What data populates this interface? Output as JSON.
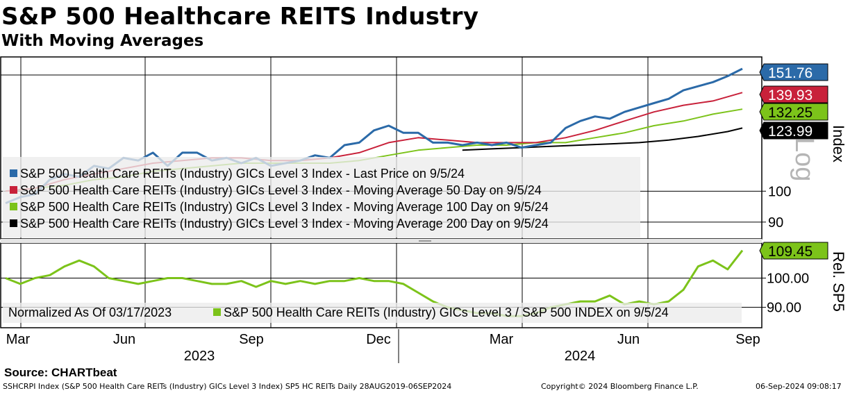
{
  "header": {
    "title": "S&P 500 Healthcare REITS Industry",
    "subtitle": "With Moving Averages"
  },
  "source": "Source: CHARTbeat",
  "footer": {
    "left": "SSHCRPI Index (S&P 500 Health Care REITs (Industry) GICs Level 3 Index) SP5 HC REITs  Daily 28AUG2019-06SEP2024",
    "center": "Copyright© 2024 Bloomberg Finance L.P.",
    "right": "06-Sep-2024 09:08:17"
  },
  "colors": {
    "last_price": "#2b6aa8",
    "ma50": "#c8213a",
    "ma100": "#7cc31a",
    "ma200": "#000000",
    "rel": "#7cc31a"
  },
  "chart_data": [
    {
      "type": "line",
      "panel": "upper",
      "axis_label": "Index",
      "scale": "log",
      "watermark": "Log",
      "x_tick_labels": [
        "Mar",
        "Jun",
        "Sep",
        "Dec",
        "Mar",
        "Jun",
        "Sep"
      ],
      "year_labels": [
        "2023",
        "2024"
      ],
      "y_ticks": [
        90,
        100
      ],
      "ylim": [
        85,
        158
      ],
      "series": [
        {
          "name": "S&P 500 Health Care REITs (Industry) GICs Level 3 Index - Last Price on 9/5/24",
          "key": "last_price",
          "last_value": "151.76",
          "x": [
            0,
            2,
            4,
            6,
            8,
            10,
            12,
            14,
            16,
            18,
            20,
            22,
            24,
            26,
            28,
            30,
            32,
            34,
            36,
            38,
            40,
            42,
            44,
            46,
            48,
            50,
            52,
            54,
            56,
            58,
            60,
            62,
            64,
            66,
            68,
            70,
            72,
            74,
            76,
            78,
            80,
            82,
            84,
            86,
            88,
            90,
            92,
            94,
            96,
            98,
            100
          ],
          "values": [
            96,
            98,
            99,
            104,
            106,
            105,
            109,
            108,
            112,
            111,
            114,
            109,
            114,
            114,
            111,
            112,
            110,
            112,
            109,
            110,
            111,
            113,
            112,
            117,
            118,
            123,
            125,
            122,
            122,
            118,
            118,
            117,
            118,
            117,
            118,
            116,
            117,
            118,
            124,
            127,
            129,
            128,
            131,
            133,
            135,
            137,
            141,
            143,
            145,
            148,
            151.76
          ]
        },
        {
          "name": "S&P 500 Health Care REITs (Industry) GICs Level 3 Index - Moving Average 50 Day on 9/5/24",
          "key": "ma50",
          "last_value": "139.93",
          "x": [
            0,
            4,
            8,
            12,
            16,
            20,
            24,
            28,
            32,
            36,
            40,
            44,
            48,
            52,
            56,
            60,
            64,
            68,
            72,
            76,
            80,
            84,
            88,
            92,
            96,
            100
          ],
          "values": [
            100,
            101,
            104,
            106,
            108,
            110,
            111,
            112,
            112,
            111,
            111,
            112,
            114,
            118,
            120,
            119,
            118,
            118,
            118,
            120,
            123,
            127,
            131,
            134,
            136,
            139.93
          ]
        },
        {
          "name": "S&P 500 Health Care REITs (Industry) GICs Level 3 Index - Moving Average 100 Day on 9/5/24",
          "key": "ma100",
          "last_value": "132.25",
          "x": [
            0,
            4,
            8,
            12,
            16,
            20,
            24,
            28,
            32,
            36,
            40,
            44,
            48,
            52,
            56,
            60,
            64,
            68,
            72,
            76,
            80,
            84,
            88,
            92,
            96,
            100
          ],
          "values": [
            100,
            101,
            102,
            104,
            105,
            107,
            108,
            109,
            110,
            110,
            110,
            110,
            111,
            113,
            115,
            116,
            117,
            117,
            118,
            118,
            120,
            122,
            125,
            127,
            130,
            132.25
          ]
        },
        {
          "name": "S&P 500 Health Care REITs (Industry) GICs Level 3 Index - Moving Average 200 Day on 9/5/24",
          "key": "ma200",
          "last_value": "123.99",
          "x": [
            62,
            66,
            70,
            74,
            78,
            82,
            86,
            90,
            94,
            98,
            100
          ],
          "values": [
            115,
            115.5,
            116,
            116.5,
            117,
            117.5,
            118,
            119,
            120.5,
            122.5,
            123.99
          ]
        }
      ]
    },
    {
      "type": "line",
      "panel": "lower",
      "axis_label": "Rel. SP5",
      "note": "Normalized As Of 03/17/2023",
      "y_tick_labels": [
        "100.00",
        "90.00"
      ],
      "y_ticks": [
        100,
        90
      ],
      "ylim": [
        83,
        112
      ],
      "series": [
        {
          "name": "S&P 500 Health Care REITs (Industry) GICs Level 3 / S&P 500 INDEX on 9/5/24",
          "key": "rel",
          "last_value": "109.45",
          "x": [
            0,
            2,
            4,
            6,
            8,
            10,
            12,
            14,
            16,
            18,
            20,
            22,
            24,
            26,
            28,
            30,
            32,
            34,
            36,
            38,
            40,
            42,
            44,
            46,
            48,
            50,
            52,
            54,
            56,
            58,
            60,
            62,
            64,
            66,
            68,
            70,
            72,
            74,
            76,
            78,
            80,
            82,
            84,
            86,
            88,
            90,
            92,
            94,
            96,
            98,
            100
          ],
          "values": [
            100,
            98,
            100,
            101,
            104,
            106,
            104,
            100,
            99,
            98,
            99,
            100,
            100,
            99,
            98,
            98,
            99,
            97,
            99,
            98,
            99,
            98,
            99,
            99,
            100,
            99,
            99,
            98,
            95,
            92,
            90,
            89,
            88,
            88,
            87,
            87,
            88,
            90,
            91,
            92,
            92,
            94,
            91,
            92,
            91,
            92,
            96,
            104,
            106,
            103,
            109.45
          ]
        }
      ]
    }
  ]
}
